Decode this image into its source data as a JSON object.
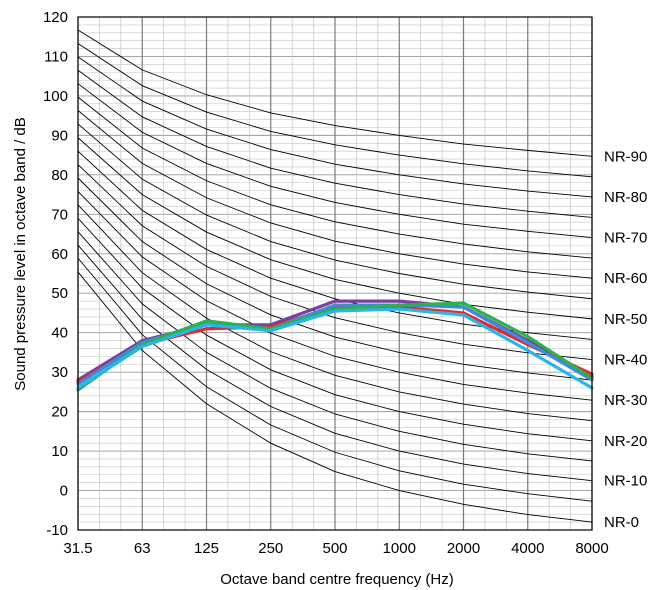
{
  "chart_data": {
    "type": "line",
    "xlabel": "Octave band centre frequency (Hz)",
    "ylabel": "Sound pressure level in octave band / dB",
    "categories": [
      "31.5",
      "63",
      "125",
      "250",
      "500",
      "1000",
      "2000",
      "4000",
      "8000"
    ],
    "ylim": [
      -10,
      120
    ],
    "yticks": [
      -10,
      0,
      10,
      20,
      30,
      40,
      50,
      60,
      70,
      80,
      90,
      100,
      110,
      120
    ],
    "grid": true,
    "nr_curve_labels": [
      "NR-90",
      "NR-80",
      "NR-70",
      "NR-60",
      "NR-50",
      "NR-40",
      "NR-30",
      "NR-20",
      "NR-10",
      "NR-0"
    ],
    "nr_curves": [
      {
        "rating": 0,
        "values": [
          55.4,
          35.5,
          22.0,
          12.0,
          4.8,
          0.0,
          -3.5,
          -6.1,
          -8.0
        ]
      },
      {
        "rating": 5,
        "values": [
          58.9,
          39.5,
          26.3,
          16.6,
          9.7,
          5.0,
          1.6,
          -0.8,
          -2.7
        ]
      },
      {
        "rating": 10,
        "values": [
          62.2,
          43.4,
          30.7,
          21.3,
          14.5,
          10.0,
          6.7,
          4.3,
          2.5
        ]
      },
      {
        "rating": 15,
        "values": [
          65.6,
          47.3,
          35.0,
          25.9,
          19.4,
          15.0,
          11.7,
          9.3,
          7.5
        ]
      },
      {
        "rating": 20,
        "values": [
          69.0,
          51.3,
          39.4,
          30.6,
          24.3,
          20.0,
          16.8,
          14.4,
          12.6
        ]
      },
      {
        "rating": 25,
        "values": [
          72.4,
          55.2,
          43.7,
          35.2,
          29.2,
          25.0,
          21.9,
          19.5,
          17.7
        ]
      },
      {
        "rating": 30,
        "values": [
          75.8,
          59.2,
          48.1,
          39.9,
          34.0,
          30.0,
          26.9,
          24.7,
          22.9
        ]
      },
      {
        "rating": 35,
        "values": [
          79.2,
          63.1,
          52.4,
          44.5,
          38.9,
          35.0,
          32.0,
          29.8,
          28.0
        ]
      },
      {
        "rating": 40,
        "values": [
          82.6,
          67.1,
          56.8,
          49.2,
          43.8,
          40.0,
          37.1,
          34.9,
          33.2
        ]
      },
      {
        "rating": 45,
        "values": [
          86.0,
          71.0,
          61.1,
          53.8,
          48.6,
          45.0,
          42.2,
          40.0,
          38.3
        ]
      },
      {
        "rating": 50,
        "values": [
          89.4,
          75.0,
          65.5,
          58.5,
          53.5,
          50.0,
          47.2,
          45.2,
          43.5
        ]
      },
      {
        "rating": 55,
        "values": [
          92.9,
          78.9,
          69.8,
          63.1,
          58.4,
          55.0,
          52.3,
          50.3,
          48.6
        ]
      },
      {
        "rating": 60,
        "values": [
          96.3,
          82.9,
          74.2,
          67.8,
          63.2,
          60.0,
          57.4,
          55.4,
          53.8
        ]
      },
      {
        "rating": 65,
        "values": [
          99.7,
          86.8,
          78.5,
          72.4,
          68.1,
          65.0,
          62.5,
          60.5,
          58.9
        ]
      },
      {
        "rating": 70,
        "values": [
          103.1,
          90.8,
          82.9,
          77.1,
          73.0,
          70.0,
          67.5,
          65.7,
          64.1
        ]
      },
      {
        "rating": 75,
        "values": [
          106.5,
          94.7,
          87.2,
          81.7,
          77.9,
          75.0,
          72.6,
          70.8,
          69.2
        ]
      },
      {
        "rating": 80,
        "values": [
          109.9,
          98.7,
          91.6,
          86.4,
          82.7,
          80.0,
          77.7,
          75.9,
          74.4
        ]
      },
      {
        "rating": 85,
        "values": [
          113.3,
          102.6,
          95.9,
          91.0,
          87.6,
          85.0,
          82.8,
          81.0,
          79.5
        ]
      },
      {
        "rating": 90,
        "values": [
          116.7,
          106.6,
          100.3,
          95.7,
          92.5,
          90.0,
          87.8,
          86.2,
          84.7
        ]
      }
    ],
    "series": [
      {
        "color": "#7b3fa0",
        "values": [
          28,
          38,
          42,
          42,
          48,
          48,
          46.5,
          38,
          29
        ]
      },
      {
        "color": "#e8282b",
        "values": [
          27.5,
          37,
          41,
          41.5,
          46.5,
          46.5,
          45,
          37,
          29.5
        ]
      },
      {
        "color": "#3c8cd8",
        "values": [
          27,
          37.5,
          42.5,
          41,
          47,
          47,
          46.5,
          37.5,
          28
        ]
      },
      {
        "color": "#2bb24c",
        "values": [
          25.5,
          37,
          43,
          41,
          46,
          47,
          47.5,
          39,
          28.5
        ]
      },
      {
        "color": "#29b5e8",
        "values": [
          26,
          36.5,
          42,
          40.5,
          45.5,
          46,
          44.5,
          35.5,
          26
        ]
      }
    ]
  }
}
